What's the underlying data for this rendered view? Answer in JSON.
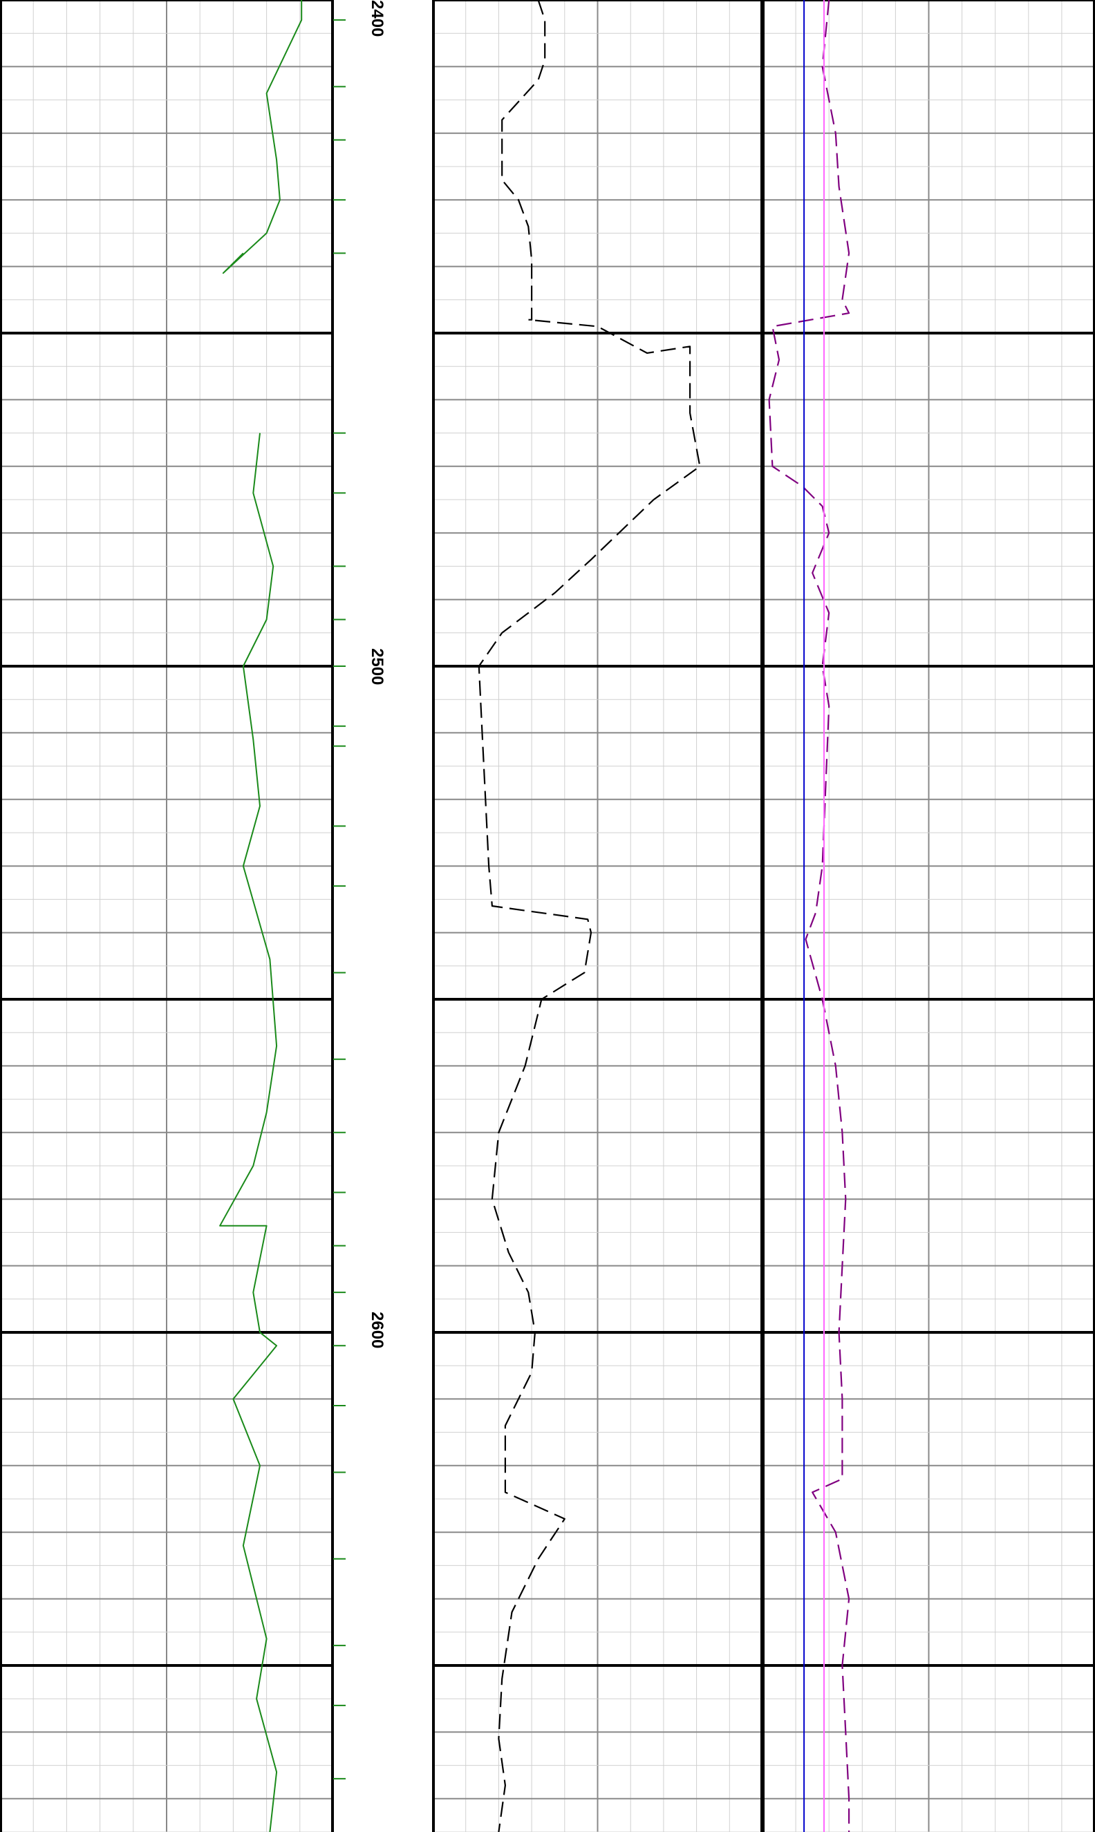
{
  "chart_data": {
    "type": "line",
    "title": "",
    "depth_axis": {
      "range": [
        2400,
        2675
      ],
      "tick_labels": [
        "2400",
        "2500",
        "2600"
      ]
    },
    "tracks": [
      {
        "name": "track-1",
        "grid": true,
        "series": [
          {
            "color": "#1a8a1a",
            "style": "solid",
            "segments": [
              [
                [
                  0.905,
                  2400
                ],
                [
                  0.905,
                  2403
                ],
                [
                  0.8,
                  2414
                ],
                [
                  0.83,
                  2424
                ],
                [
                  0.84,
                  2430
                ],
                [
                  0.8,
                  2435
                ],
                [
                  0.67,
                  2441
                ],
                [
                  0.73,
                  2438
                ]
              ],
              [
                [
                  0.78,
                  2465
                ],
                [
                  0.76,
                  2474
                ],
                [
                  0.82,
                  2485
                ],
                [
                  0.8,
                  2493
                ],
                [
                  0.73,
                  2500
                ],
                [
                  0.76,
                  2511
                ],
                [
                  0.78,
                  2521
                ],
                [
                  0.73,
                  2530
                ],
                [
                  0.81,
                  2544
                ],
                [
                  0.83,
                  2557
                ],
                [
                  0.8,
                  2567
                ],
                [
                  0.76,
                  2575
                ],
                [
                  0.66,
                  2584
                ],
                [
                  0.8,
                  2584
                ],
                [
                  0.76,
                  2594
                ],
                [
                  0.78,
                  2600
                ],
                [
                  0.83,
                  2602
                ],
                [
                  0.7,
                  2610
                ],
                [
                  0.78,
                  2620
                ],
                [
                  0.73,
                  2632
                ],
                [
                  0.8,
                  2646
                ],
                [
                  0.77,
                  2655
                ],
                [
                  0.83,
                  2666
                ],
                [
                  0.81,
                  2675
                ]
              ]
            ]
          }
        ]
      },
      {
        "name": "track-2",
        "grid": true,
        "series": [
          {
            "color": "#000000",
            "style": "dashed",
            "points": [
              [
                0.32,
                2400
              ],
              [
                0.34,
                2403
              ],
              [
                0.34,
                2409
              ],
              [
                0.32,
                2412
              ],
              [
                0.21,
                2418
              ],
              [
                0.21,
                2427
              ],
              [
                0.26,
                2430
              ],
              [
                0.29,
                2434
              ],
              [
                0.3,
                2439
              ],
              [
                0.3,
                2448
              ],
              [
                0.29,
                2448
              ],
              [
                0.5,
                2449
              ],
              [
                0.65,
                2453
              ],
              [
                0.78,
                2452
              ],
              [
                0.78,
                2462
              ],
              [
                0.81,
                2470
              ],
              [
                0.67,
                2475
              ],
              [
                0.48,
                2484
              ],
              [
                0.37,
                2489
              ],
              [
                0.21,
                2495
              ],
              [
                0.14,
                2500
              ],
              [
                0.15,
                2510
              ],
              [
                0.16,
                2520
              ],
              [
                0.17,
                2530
              ],
              [
                0.18,
                2536
              ],
              [
                0.47,
                2538
              ],
              [
                0.48,
                2540
              ],
              [
                0.46,
                2546
              ],
              [
                0.33,
                2550
              ],
              [
                0.28,
                2560
              ],
              [
                0.2,
                2570
              ],
              [
                0.18,
                2580
              ],
              [
                0.23,
                2588
              ],
              [
                0.29,
                2594
              ],
              [
                0.31,
                2600
              ],
              [
                0.3,
                2606
              ],
              [
                0.22,
                2614
              ],
              [
                0.22,
                2624
              ],
              [
                0.4,
                2628
              ],
              [
                0.32,
                2634
              ],
              [
                0.24,
                2642
              ],
              [
                0.21,
                2652
              ],
              [
                0.2,
                2661
              ],
              [
                0.22,
                2668
              ],
              [
                0.2,
                2675
              ]
            ]
          }
        ]
      },
      {
        "name": "track-3",
        "grid": true,
        "series": [
          {
            "color": "#800080",
            "style": "dashed",
            "points": [
              [
                0.2,
                2400
              ],
              [
                0.18,
                2410
              ],
              [
                0.22,
                2420
              ],
              [
                0.23,
                2428
              ],
              [
                0.26,
                2438
              ],
              [
                0.24,
                2445
              ],
              [
                0.26,
                2447
              ],
              [
                0.03,
                2449
              ],
              [
                0.05,
                2454
              ],
              [
                0.02,
                2460
              ],
              [
                0.03,
                2470
              ],
              [
                0.12,
                2473
              ],
              [
                0.18,
                2476
              ],
              [
                0.2,
                2480
              ],
              [
                0.15,
                2486
              ],
              [
                0.2,
                2492
              ],
              [
                0.18,
                2500
              ],
              [
                0.2,
                2506
              ],
              [
                0.19,
                2518
              ],
              [
                0.18,
                2530
              ],
              [
                0.16,
                2537
              ],
              [
                0.13,
                2541
              ],
              [
                0.18,
                2550
              ],
              [
                0.22,
                2560
              ],
              [
                0.24,
                2570
              ],
              [
                0.25,
                2580
              ],
              [
                0.24,
                2590
              ],
              [
                0.23,
                2600
              ],
              [
                0.24,
                2610
              ],
              [
                0.24,
                2622
              ],
              [
                0.15,
                2624
              ],
              [
                0.22,
                2630
              ],
              [
                0.26,
                2640
              ],
              [
                0.24,
                2650
              ],
              [
                0.25,
                2660
              ],
              [
                0.26,
                2670
              ],
              [
                0.26,
                2675
              ]
            ]
          },
          {
            "color": "#0000cc",
            "style": "solid",
            "points": [
              [
                0.125,
                2400
              ],
              [
                0.125,
                2675
              ]
            ]
          },
          {
            "color": "#ff66ff",
            "style": "solid",
            "points": [
              [
                0.185,
                2400
              ],
              [
                0.185,
                2675
              ]
            ]
          }
        ]
      }
    ]
  }
}
